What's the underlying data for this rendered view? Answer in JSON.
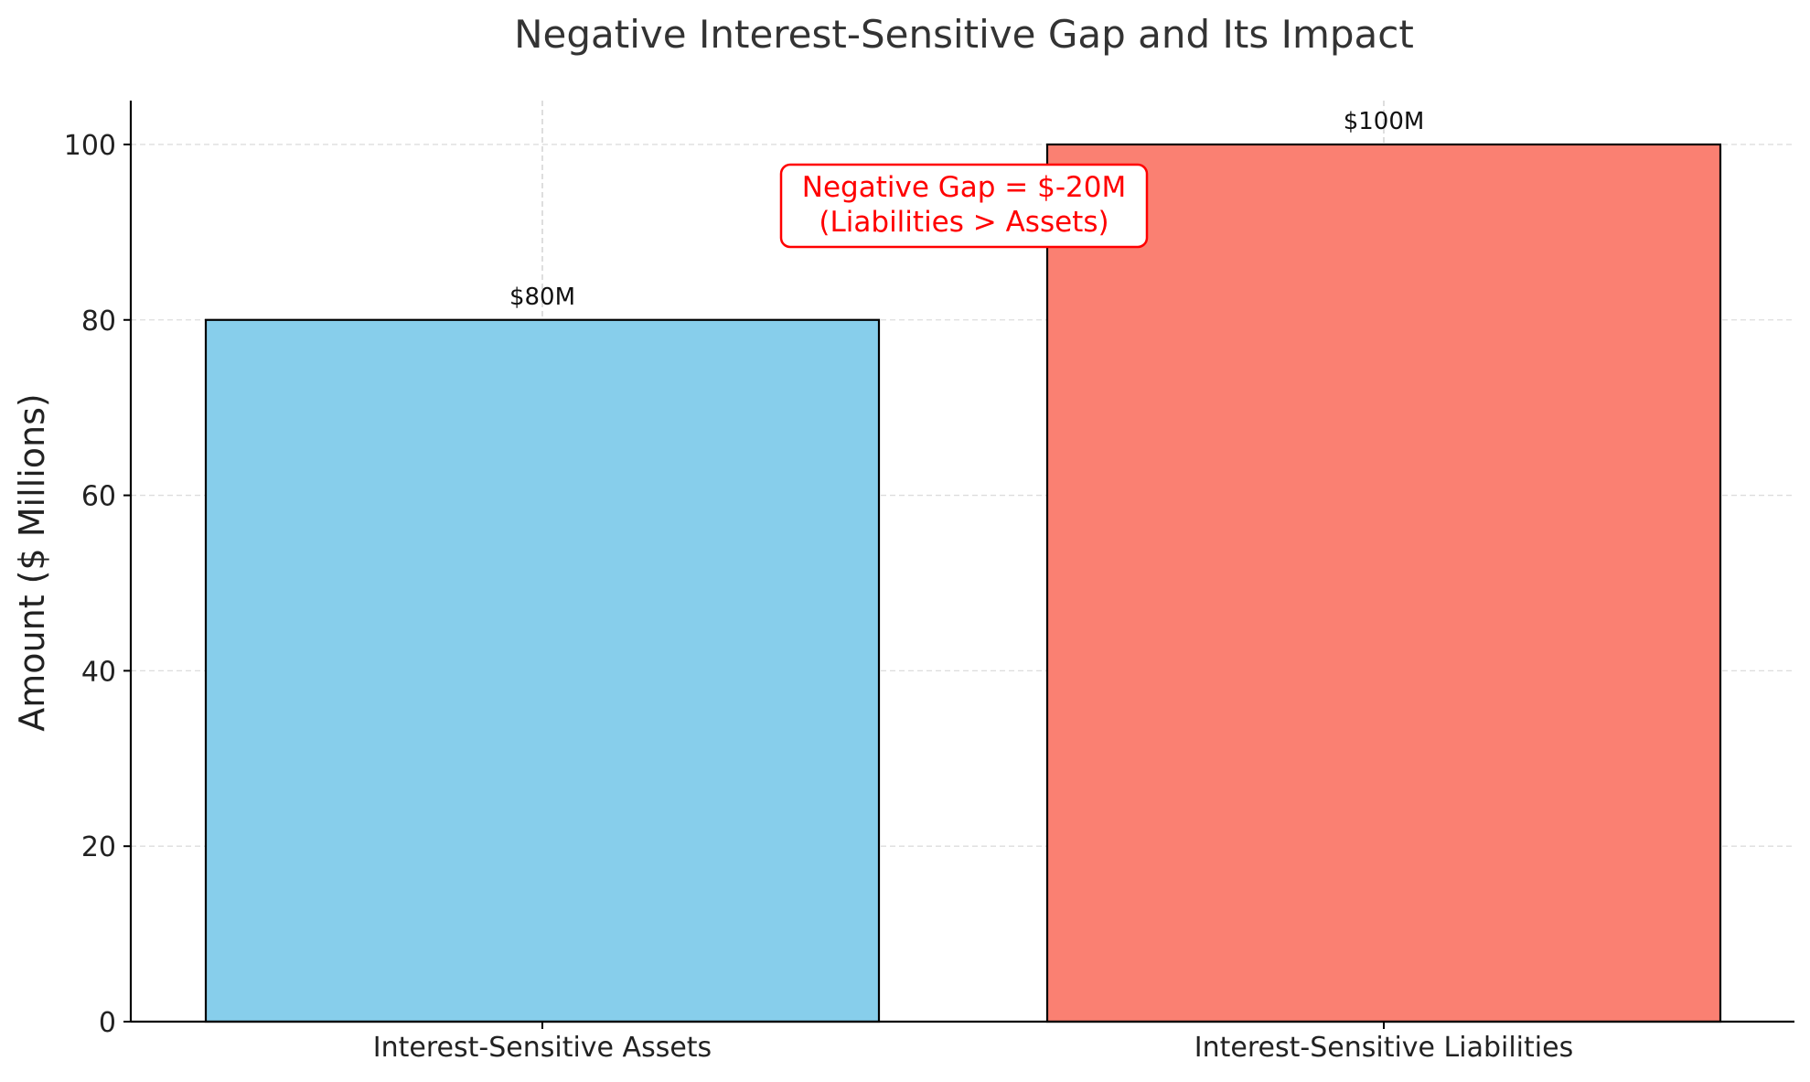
{
  "chart_data": {
    "type": "bar",
    "title": "Negative Interest-Sensitive Gap and Its Impact",
    "xlabel": "",
    "ylabel": "Amount ($ Millions)",
    "categories": [
      "Interest-Sensitive Assets",
      "Interest-Sensitive Liabilities"
    ],
    "values": [
      80,
      100
    ],
    "data_labels": [
      "$80M",
      "$100M"
    ],
    "bar_colors": [
      "#87ceeb",
      "#fa8072"
    ],
    "bar_edge_color": "#000000",
    "ylim": [
      0,
      105
    ],
    "yticks": [
      0,
      20,
      40,
      60,
      80,
      100
    ],
    "grid": true,
    "annotation": {
      "lines": [
        "Negative Gap = $-20M",
        "(Liabilities > Assets)"
      ],
      "color": "#ff0000"
    }
  }
}
